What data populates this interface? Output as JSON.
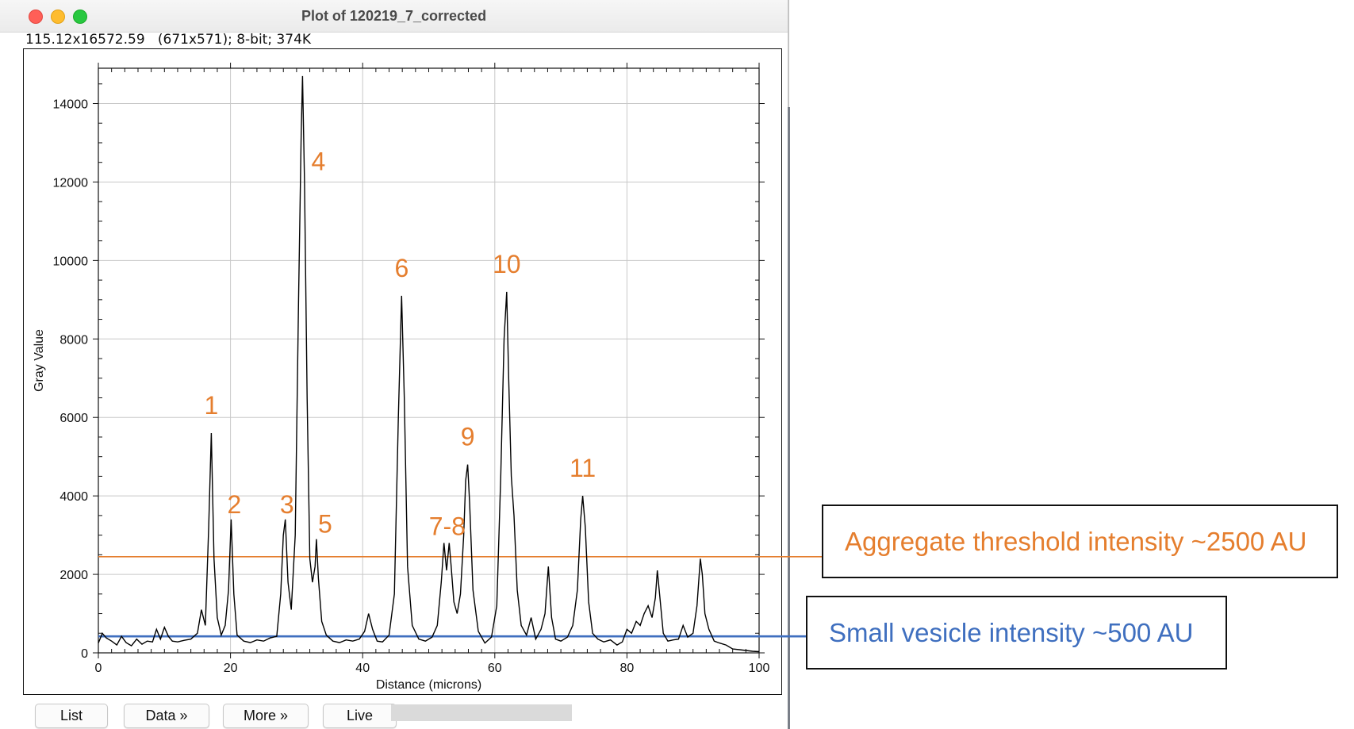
{
  "window": {
    "title": "Plot of 120219_7_corrected",
    "info": "115.12x16572.59   (671x571); 8-bit; 374K"
  },
  "buttons": {
    "list": "List",
    "data": "Data »",
    "more": "More »",
    "live": "Live"
  },
  "colors": {
    "aggregate": "#e57e2e",
    "vesicle": "#3f6fbf",
    "peak_label": "#e57e2e",
    "profile": "#000000"
  },
  "annotations": {
    "aggregate_label": "Aggregate  threshold intensity ~2500 AU",
    "vesicle_label": "Small vesicle intensity ~500 AU"
  },
  "chart_data": {
    "type": "line",
    "title": "",
    "xlabel": "Distance (microns)",
    "ylabel": "Gray Value",
    "xlim": [
      0,
      100
    ],
    "ylim": [
      0,
      14900
    ],
    "x_ticks": [
      0,
      20,
      40,
      60,
      80,
      100
    ],
    "y_ticks": [
      0,
      2000,
      4000,
      6000,
      8000,
      10000,
      12000,
      14000
    ],
    "grid": true,
    "reference_lines": [
      {
        "label": "Aggregate  threshold intensity ~2500 AU",
        "y": 2450,
        "color": "#e57e2e"
      },
      {
        "label": "Small vesicle intensity ~500 AU",
        "y": 420,
        "color": "#3f6fbf"
      }
    ],
    "peak_labels": [
      {
        "text": "1",
        "x": 17.1,
        "y": 5600
      },
      {
        "text": "2",
        "x": 20.1,
        "y": 3400
      },
      {
        "text": "3",
        "x": 28.3,
        "y": 3400
      },
      {
        "text": "4",
        "x": 30.9,
        "y": 14700
      },
      {
        "text": "5",
        "x": 33.0,
        "y": 2900
      },
      {
        "text": "6",
        "x": 45.9,
        "y": 9100
      },
      {
        "text": "7-8",
        "x": 52.8,
        "y": 2800
      },
      {
        "text": "9",
        "x": 55.9,
        "y": 4800
      },
      {
        "text": "10",
        "x": 61.8,
        "y": 9200
      },
      {
        "text": "11",
        "x": 73.3,
        "y": 4000
      }
    ],
    "series": [
      {
        "x": [
          0,
          0.6,
          1.2,
          2,
          2.8,
          3.5,
          4.2,
          5,
          5.8,
          6.6,
          7.4,
          8.2,
          8.8,
          9.4,
          10,
          10.6,
          11.2,
          12,
          13,
          14,
          15,
          15.6,
          16.2,
          16.7,
          17.1,
          17.5,
          18,
          18.6,
          19.2,
          19.7,
          20.1,
          20.5,
          21,
          22,
          23,
          24,
          25,
          26,
          27,
          27.6,
          28,
          28.3,
          28.7,
          29.2,
          29.8,
          30.3,
          30.7,
          30.9,
          31.2,
          31.6,
          32,
          32.4,
          32.8,
          33.0,
          33.3,
          33.8,
          34.5,
          35.5,
          36.5,
          37.5,
          38.5,
          39.5,
          40.3,
          40.9,
          41.5,
          42.2,
          43,
          44,
          44.8,
          45.4,
          45.9,
          46.3,
          46.8,
          47.5,
          48.5,
          49.5,
          50.5,
          51.3,
          51.9,
          52.3,
          52.7,
          53.1,
          53.4,
          53.8,
          54.3,
          54.8,
          55.3,
          55.6,
          55.9,
          56.2,
          56.7,
          57.5,
          58.5,
          59.5,
          60.3,
          60.9,
          61.4,
          61.8,
          62.1,
          62.5,
          62.9,
          63.4,
          64,
          64.8,
          65.5,
          66.2,
          67,
          67.6,
          68.1,
          68.6,
          69.2,
          70,
          71,
          71.8,
          72.5,
          73,
          73.3,
          73.7,
          74.2,
          74.8,
          75.6,
          76.5,
          77.5,
          78.5,
          79.3,
          80,
          80.7,
          81.4,
          82,
          82.6,
          83.2,
          83.8,
          84.3,
          84.6,
          85,
          85.5,
          86.2,
          87,
          87.8,
          88.5,
          89.2,
          90,
          90.6,
          91.1,
          91.4,
          91.8,
          92.4,
          93.2,
          94,
          95,
          96,
          97,
          98,
          99,
          100
        ],
        "y": [
          250,
          500,
          380,
          300,
          200,
          420,
          260,
          180,
          350,
          220,
          300,
          280,
          600,
          350,
          650,
          420,
          300,
          280,
          320,
          350,
          500,
          1100,
          700,
          3200,
          5600,
          2400,
          900,
          450,
          700,
          1600,
          3400,
          1500,
          450,
          300,
          260,
          330,
          300,
          380,
          420,
          1500,
          3000,
          3400,
          1800,
          1100,
          3000,
          9000,
          13200,
          14700,
          12000,
          6500,
          2400,
          1800,
          2200,
          2900,
          1900,
          800,
          450,
          300,
          260,
          330,
          300,
          350,
          550,
          1000,
          600,
          300,
          280,
          450,
          1500,
          6000,
          9100,
          6500,
          2200,
          700,
          350,
          300,
          400,
          700,
          1800,
          2800,
          2100,
          2800,
          2200,
          1300,
          1000,
          1500,
          3000,
          4400,
          4800,
          3800,
          1600,
          550,
          250,
          400,
          1200,
          4500,
          8000,
          9200,
          7000,
          4500,
          3500,
          1600,
          700,
          450,
          900,
          350,
          600,
          1000,
          2200,
          900,
          350,
          300,
          400,
          700,
          1600,
          3400,
          4000,
          3200,
          1300,
          500,
          350,
          280,
          330,
          200,
          280,
          600,
          500,
          800,
          700,
          1000,
          1200,
          900,
          1400,
          2100,
          1400,
          500,
          300,
          330,
          350,
          700,
          400,
          500,
          1200,
          2400,
          2000,
          1000,
          600,
          300,
          250,
          200,
          100,
          80,
          60,
          40,
          30
        ]
      }
    ]
  }
}
